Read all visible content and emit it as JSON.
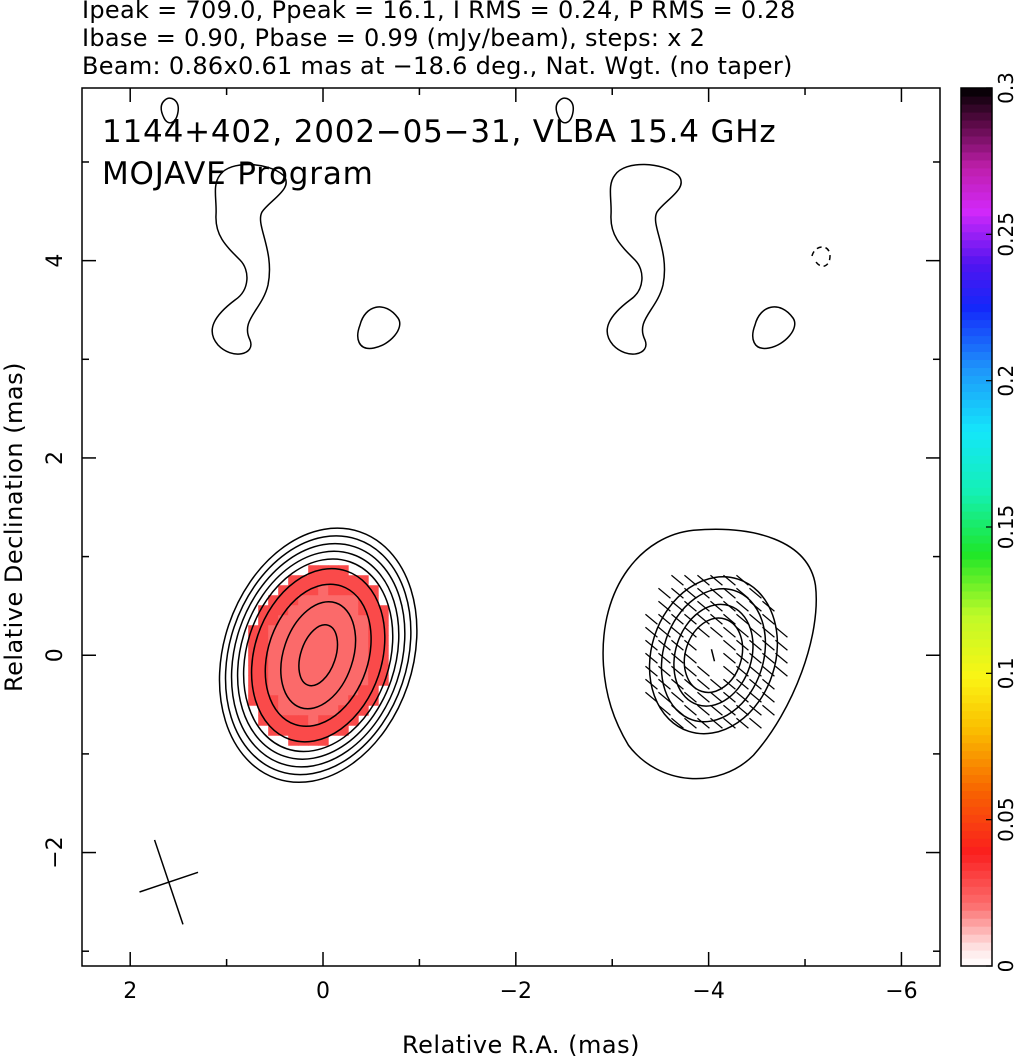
{
  "header": {
    "line1": "Ipeak = 709.0, Ppeak = 16.1, I RMS = 0.24, P RMS = 0.28",
    "line2": "Ibase = 0.90, Pbase = 0.99 (mJy/beam), steps: x 2",
    "line3": "Beam: 0.86x0.61 mas at −18.6 deg., Nat. Wgt. (no taper)"
  },
  "annotations": {
    "source_line": "1144+402, 2002−05−31, VLBA 15.4 GHz",
    "program_line": "MOJAVE Program"
  },
  "colors": {
    "fill_red": "#fa4a4a",
    "fill_pale": "#fb6a6a",
    "line": "#000000"
  },
  "chart_data": [
    {
      "type": "heatmap",
      "description_of_panels": [
        "total intensity contours with fractional polarization color",
        "contours with EVPA ticks"
      ],
      "xlabel": "Relative R.A. (mas)",
      "ylabel": "Relative Declination (mas)",
      "xlim": [
        2.5,
        -6.4
      ],
      "ylim": [
        -3.15,
        5.75
      ],
      "x_ticks": [
        2,
        0,
        -2,
        -4,
        -6
      ],
      "x_tick_labels": [
        "2",
        "0",
        "−2",
        "−4",
        "−6"
      ],
      "y_ticks": [
        -2,
        0,
        2,
        4
      ],
      "y_tick_labels": [
        "−2",
        "0",
        "2",
        "4"
      ],
      "beam": {
        "major_mas": 0.86,
        "minor_mas": 0.61,
        "pa_deg": -18.6,
        "center": [
          1.6,
          -2.3
        ]
      },
      "left_core": {
        "center": [
          0.05,
          0.0
        ],
        "contour_semi_axes": [
          [
            0.18,
            0.32
          ],
          [
            0.36,
            0.56
          ],
          [
            0.52,
            0.74
          ],
          [
            0.66,
            0.9
          ],
          [
            0.74,
            1.0
          ],
          [
            0.8,
            1.08
          ],
          [
            0.86,
            1.16
          ],
          [
            0.92,
            1.24
          ],
          [
            0.98,
            1.32
          ]
        ],
        "position_angle_deg": -18.6
      },
      "right_core": {
        "center": [
          -4.05,
          0.0
        ],
        "contours": 5
      },
      "colorbar": {
        "label_min": "0",
        "tick_labels": [
          "0",
          "0.05",
          "0.1",
          "0.15",
          "0.2",
          "0.25",
          "0.3"
        ],
        "values": [
          0,
          0.05,
          0.1,
          0.15,
          0.2,
          0.25,
          0.3
        ],
        "range": [
          0,
          0.3
        ]
      },
      "polarization_fill_value": 0.04
    }
  ]
}
